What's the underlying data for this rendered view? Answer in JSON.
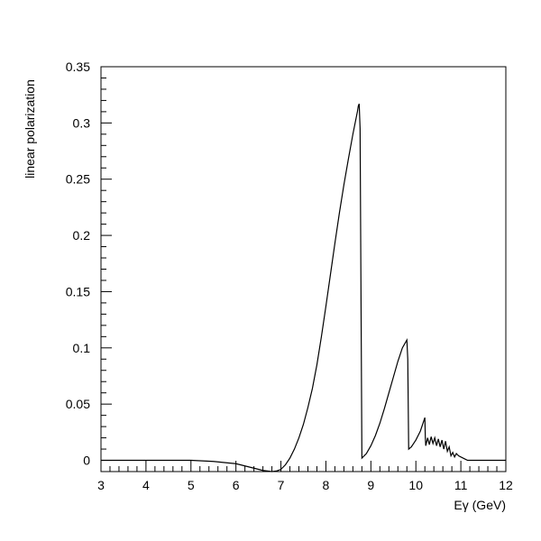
{
  "chart_data": {
    "type": "line",
    "title": "",
    "xlabel": "Eγ (GeV)",
    "ylabel": "linear polarization",
    "xlim": [
      3,
      12
    ],
    "ylim": [
      -0.01,
      0.35
    ],
    "grid": false,
    "legend": "none",
    "x_ticks": [
      3,
      4,
      5,
      6,
      7,
      8,
      9,
      10,
      11,
      12
    ],
    "x_tick_labels": [
      "3",
      "4",
      "5",
      "6",
      "7",
      "8",
      "9",
      "10",
      "11",
      "12"
    ],
    "y_ticks": [
      0,
      0.05,
      0.1,
      0.15,
      0.2,
      0.25,
      0.3,
      0.35
    ],
    "y_tick_labels": [
      "0",
      "0.05",
      "0.1",
      "0.15",
      "0.2",
      "0.25",
      "0.3",
      "0.35"
    ],
    "line_color": "#000000",
    "series": [
      {
        "x": [
          3.0,
          5.0,
          5.5,
          6.0,
          6.3,
          6.6,
          6.8,
          6.9,
          7.0,
          7.1,
          7.2,
          7.3,
          7.4,
          7.5,
          7.6,
          7.7,
          7.8,
          7.9,
          8.0,
          8.1,
          8.2,
          8.3,
          8.4,
          8.5,
          8.6,
          8.7,
          8.72,
          8.74,
          8.76,
          8.8,
          8.9,
          9.0,
          9.1,
          9.2,
          9.3,
          9.4,
          9.5,
          9.6,
          9.7,
          9.8,
          9.82,
          9.84,
          9.9,
          10.0,
          10.1,
          10.2,
          10.21,
          10.22,
          10.26,
          10.3,
          10.34,
          10.38,
          10.42,
          10.46,
          10.5,
          10.54,
          10.58,
          10.62,
          10.66,
          10.7,
          10.74,
          10.78,
          10.82,
          10.86,
          10.9,
          10.95,
          11.0,
          11.05,
          11.1,
          11.15,
          11.2,
          12.0
        ],
        "y": [
          0.0,
          0.0,
          -0.001,
          -0.003,
          -0.006,
          -0.009,
          -0.01,
          -0.0095,
          -0.008,
          -0.004,
          0.002,
          0.01,
          0.02,
          0.032,
          0.047,
          0.064,
          0.085,
          0.11,
          0.137,
          0.165,
          0.193,
          0.22,
          0.245,
          0.268,
          0.29,
          0.31,
          0.315,
          0.317,
          0.295,
          0.002,
          0.006,
          0.013,
          0.022,
          0.033,
          0.046,
          0.06,
          0.074,
          0.088,
          0.1,
          0.107,
          0.09,
          0.01,
          0.012,
          0.018,
          0.026,
          0.038,
          0.02,
          0.013,
          0.02,
          0.014,
          0.021,
          0.015,
          0.02,
          0.013,
          0.019,
          0.012,
          0.018,
          0.01,
          0.017,
          0.008,
          0.012,
          0.004,
          0.007,
          0.003,
          0.006,
          0.004,
          0.003,
          0.002,
          0.001,
          0.0,
          0.0,
          0.0
        ]
      }
    ]
  }
}
